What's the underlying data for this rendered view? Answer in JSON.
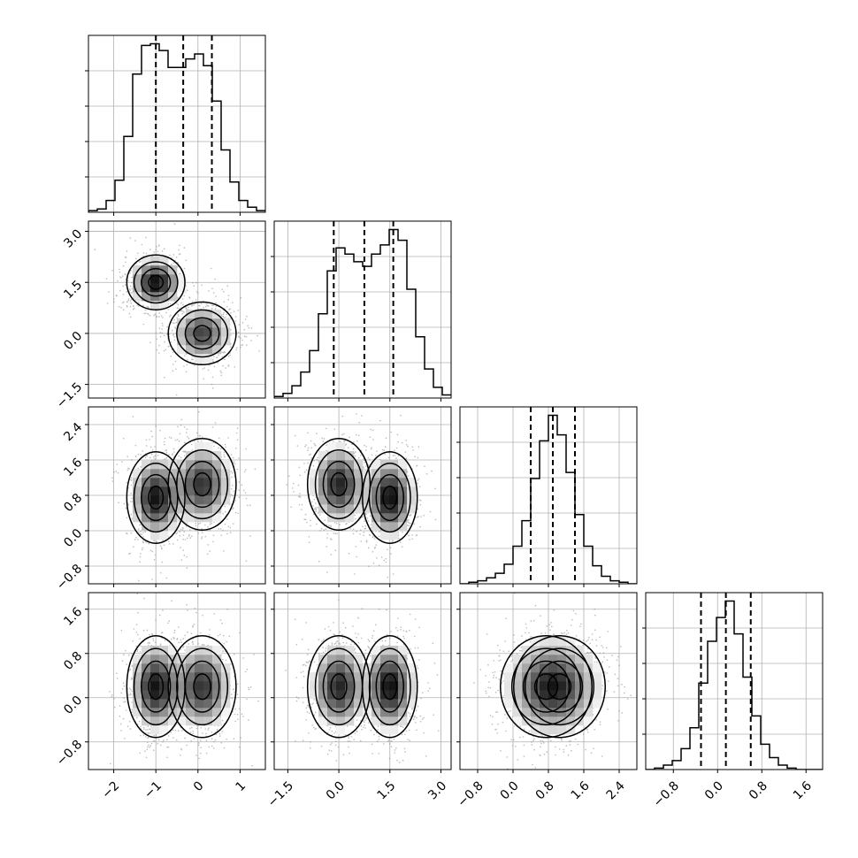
{
  "chart_data": {
    "type": "corner",
    "title": "",
    "n_params": 4,
    "grid": true,
    "params": [
      {
        "range": [
          -2.6,
          1.6
        ],
        "ticks": [
          -2,
          -1,
          0,
          1
        ],
        "tick_labels": [
          "−2",
          "−1",
          "0",
          "1"
        ],
        "quantiles": [
          -1.0,
          -0.35,
          0.33
        ],
        "hist_bins": [
          0.01,
          0.02,
          0.07,
          0.19,
          0.45,
          0.82,
          0.99,
          1.0,
          0.96,
          0.86,
          0.86,
          0.91,
          0.94,
          0.87,
          0.66,
          0.37,
          0.18,
          0.07,
          0.03,
          0.01
        ]
      },
      {
        "range": [
          -1.9,
          3.3
        ],
        "ticks": [
          -1.5,
          0.0,
          1.5,
          3.0
        ],
        "tick_labels": [
          "−1.5",
          "0.0",
          "1.5",
          "3.0"
        ],
        "quantiles": [
          -0.15,
          0.75,
          1.6
        ],
        "hist_bins": [
          0.01,
          0.03,
          0.08,
          0.17,
          0.31,
          0.55,
          0.83,
          0.98,
          0.94,
          0.89,
          0.86,
          0.94,
          1.0,
          1.1,
          1.03,
          0.71,
          0.4,
          0.19,
          0.07,
          0.02
        ]
      },
      {
        "range": [
          -1.2,
          2.8
        ],
        "ticks": [
          -0.8,
          0.0,
          0.8,
          1.6,
          2.4
        ],
        "tick_labels": [
          "−0.8",
          "0.0",
          "0.8",
          "1.6",
          "2.4"
        ],
        "quantiles": [
          0.4,
          0.9,
          1.4
        ],
        "hist_bins": [
          0.0,
          0.01,
          0.02,
          0.04,
          0.07,
          0.13,
          0.25,
          0.42,
          0.7,
          0.95,
          1.12,
          0.99,
          0.74,
          0.46,
          0.25,
          0.12,
          0.05,
          0.02,
          0.01,
          0.0
        ]
      },
      {
        "range": [
          -1.3,
          1.9
        ],
        "ticks": [
          -0.8,
          0.0,
          0.8,
          1.6
        ],
        "tick_labels": [
          "−0.8",
          "0.0",
          "0.8",
          "1.6"
        ],
        "quantiles": [
          -0.3,
          0.15,
          0.6
        ],
        "hist_bins": [
          0.0,
          0.01,
          0.03,
          0.06,
          0.14,
          0.28,
          0.58,
          0.86,
          1.02,
          1.13,
          0.91,
          0.62,
          0.36,
          0.17,
          0.08,
          0.03,
          0.01,
          0.0,
          0.0,
          0.0
        ]
      }
    ],
    "components": [
      {
        "weight": 0.5,
        "mean": [
          -1.0,
          1.5,
          0.75,
          0.2
        ],
        "sd": [
          0.3,
          0.35,
          0.45,
          0.4
        ]
      },
      {
        "weight": 0.5,
        "mean": [
          0.1,
          0.0,
          1.05,
          0.2
        ],
        "sd": [
          0.35,
          0.4,
          0.45,
          0.4
        ]
      }
    ],
    "contour_levels_sigma": [
      0.5,
      1.0,
      1.5,
      2.0
    ],
    "colors": {
      "scatter": "#8a8a8a",
      "line": "#000000",
      "grid": "#b0b0b0",
      "density": "#000000"
    }
  }
}
